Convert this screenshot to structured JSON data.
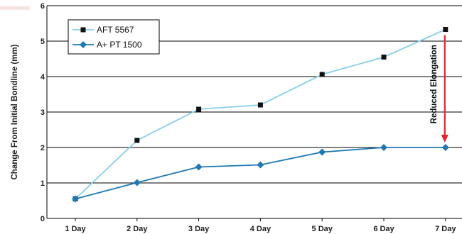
{
  "chart_data": {
    "type": "line",
    "categories": [
      "1 Day",
      "2 Day",
      "3 Day",
      "4 Day",
      "5 Day",
      "6 Day",
      "7 Day"
    ],
    "ylabel": "Change From Initial Bondline (mm)",
    "xlabel": "",
    "ylim": [
      0,
      6
    ],
    "yticks": [
      "0",
      "1",
      "2",
      "3",
      "4",
      "5",
      "6"
    ],
    "grid": "horizontal",
    "legend_position": "top-left",
    "series": [
      {
        "name": "AFT  5567",
        "values": [
          0.55,
          2.2,
          3.08,
          3.2,
          4.06,
          4.55,
          5.33
        ],
        "line_color": "#87ceeb",
        "marker": "square",
        "marker_color": "#111111"
      },
      {
        "name": "A+ PT 1500",
        "values": [
          0.55,
          1.01,
          1.45,
          1.51,
          1.87,
          2.0,
          2.0
        ],
        "line_color": "#1f78b4",
        "marker": "diamond",
        "marker_color": "#1f78b4"
      }
    ],
    "annotation": {
      "text": "Reduced Elongation",
      "from_value": 5.33,
      "to_value": 2.0,
      "category": "7 Day",
      "arrow_color": "#e8202a"
    }
  }
}
